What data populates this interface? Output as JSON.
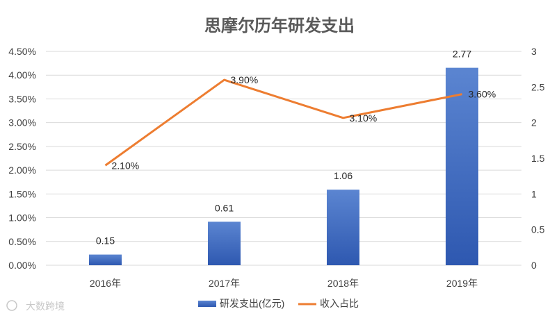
{
  "chart_data": {
    "type": "bar",
    "title": "思摩尔历年研发支出",
    "categories": [
      "2016年",
      "2017年",
      "2018年",
      "2019年"
    ],
    "series": [
      {
        "name": "研发支出(亿元)",
        "type": "bar",
        "axis": "right",
        "values": [
          0.15,
          0.61,
          1.06,
          2.77
        ],
        "labels": [
          "0.15",
          "0.61",
          "1.06",
          "2.77"
        ]
      },
      {
        "name": "收入占比",
        "type": "line",
        "axis": "left",
        "values": [
          2.1,
          3.9,
          3.1,
          3.6
        ],
        "labels": [
          "2.10%",
          "3.90%",
          "3.10%",
          "3.60%"
        ]
      }
    ],
    "y_left": {
      "ylim": [
        0,
        4.5
      ],
      "ticks": [
        "0.00%",
        "0.50%",
        "1.00%",
        "1.50%",
        "2.00%",
        "2.50%",
        "3.00%",
        "3.50%",
        "4.00%",
        "4.50%"
      ]
    },
    "y_right": {
      "ylim": [
        0,
        3
      ],
      "ticks": [
        "0",
        "0.5",
        "1",
        "1.5",
        "2",
        "2.5",
        "3"
      ]
    },
    "grid": true,
    "legend_position": "bottom",
    "colors": {
      "bar": "#4472C4",
      "line": "#ED7D31",
      "grid": "#D9D9D9"
    }
  },
  "watermark": "大数跨境"
}
